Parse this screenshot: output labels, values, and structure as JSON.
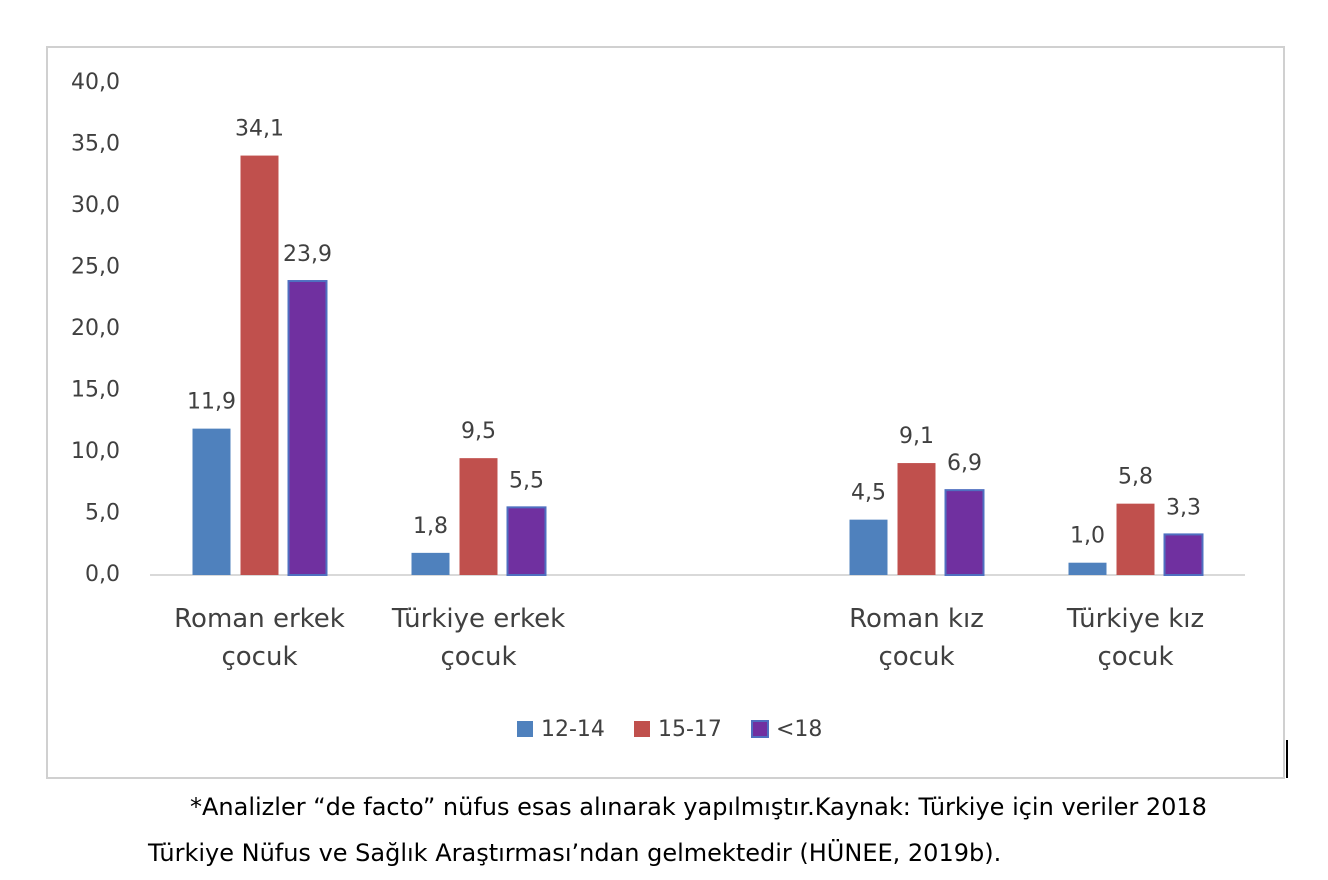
{
  "chart_data": {
    "type": "bar",
    "categories": [
      "Roman erkek çocuk",
      "Türkiye erkek çocuk",
      null,
      "Roman kız çocuk",
      "Türkiye kız çocuk"
    ],
    "series": [
      {
        "name": "12-14",
        "color": "#4f81bd",
        "values": [
          11.9,
          1.8,
          null,
          4.5,
          1.0
        ],
        "value_labels": [
          "11,9",
          "1,8",
          null,
          "4,5",
          "1,0"
        ]
      },
      {
        "name": "15-17",
        "color": "#c0504d",
        "values": [
          34.1,
          9.5,
          null,
          9.1,
          5.8
        ],
        "value_labels": [
          "34,1",
          "9,5",
          null,
          "9,1",
          "5,8"
        ]
      },
      {
        "name": "<18",
        "color": "#7030a0",
        "values": [
          23.9,
          5.5,
          null,
          6.9,
          3.3
        ],
        "value_labels": [
          "23,9",
          "5,5",
          null,
          "6,9",
          "3,3"
        ]
      }
    ],
    "ylim": [
      0,
      40
    ],
    "yticks": [
      {
        "value": 0,
        "label": "0,0"
      },
      {
        "value": 5,
        "label": "5,0"
      },
      {
        "value": 10,
        "label": "10,0"
      },
      {
        "value": 15,
        "label": "15,0"
      },
      {
        "value": 20,
        "label": "20,0"
      },
      {
        "value": 25,
        "label": "25,0"
      },
      {
        "value": 30,
        "label": "30,0"
      },
      {
        "value": 35,
        "label": "35,0"
      },
      {
        "value": 40,
        "label": "40,0"
      }
    ],
    "grid": false,
    "legend": "bottom",
    "note": "*Analizler “de facto” nüfus esas alınarak yapılmıştır.Kaynak: Türkiye için veriler 2018 Türkiye Nüfus ve Sağlık Araştırması’ndan gelmektedir (HÜNEE, 2019b)."
  }
}
